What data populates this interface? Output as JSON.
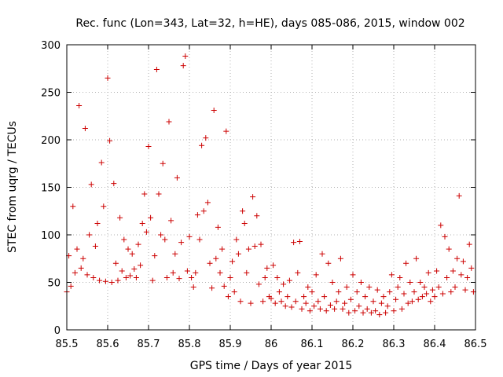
{
  "chart_data": {
    "type": "scatter",
    "title": "Rec. func (Lon=343, Lat=32, h=HE), days 085-086, 2015, window 002",
    "xlabel": "GPS time / Days of year 2015",
    "ylabel": "STEC from uqrg / TECUs",
    "xlim": [
      85.5,
      86.5
    ],
    "ylim": [
      0,
      300
    ],
    "xticks": [
      "85.5",
      "85.6",
      "85.7",
      "85.8",
      "85.9",
      "86",
      "86.1",
      "86.2",
      "86.3",
      "86.4",
      "86.5"
    ],
    "yticks": [
      "0",
      "50",
      "100",
      "150",
      "200",
      "250",
      "300"
    ],
    "grid": true,
    "marker": "plus",
    "colors": {
      "points": "#cc0000",
      "axes": "#000000",
      "grid": "#b0b0b0"
    },
    "series": [
      {
        "points": [
          [
            85.5,
            40
          ],
          [
            85.505,
            78
          ],
          [
            85.51,
            46
          ],
          [
            85.515,
            130
          ],
          [
            85.52,
            60
          ],
          [
            85.525,
            85
          ],
          [
            85.53,
            236
          ],
          [
            85.535,
            65
          ],
          [
            85.54,
            75
          ],
          [
            85.545,
            212
          ],
          [
            85.55,
            58
          ],
          [
            85.555,
            100
          ],
          [
            85.56,
            153
          ],
          [
            85.565,
            55
          ],
          [
            85.57,
            88
          ],
          [
            85.575,
            112
          ],
          [
            85.58,
            52
          ],
          [
            85.585,
            176
          ],
          [
            85.59,
            130
          ],
          [
            85.595,
            51
          ],
          [
            85.6,
            265
          ],
          [
            85.605,
            199
          ],
          [
            85.61,
            50
          ],
          [
            85.615,
            154
          ],
          [
            85.62,
            70
          ],
          [
            85.625,
            52
          ],
          [
            85.63,
            118
          ],
          [
            85.635,
            62
          ],
          [
            85.64,
            95
          ],
          [
            85.645,
            55
          ],
          [
            85.65,
            85
          ],
          [
            85.655,
            57
          ],
          [
            85.66,
            80
          ],
          [
            85.665,
            64
          ],
          [
            85.67,
            55
          ],
          [
            85.675,
            90
          ],
          [
            85.68,
            68
          ],
          [
            85.685,
            112
          ],
          [
            85.69,
            143
          ],
          [
            85.695,
            103
          ],
          [
            85.7,
            193
          ],
          [
            85.705,
            118
          ],
          [
            85.71,
            52
          ],
          [
            85.715,
            78
          ],
          [
            85.72,
            274
          ],
          [
            85.725,
            143
          ],
          [
            85.73,
            100
          ],
          [
            85.735,
            175
          ],
          [
            85.74,
            95
          ],
          [
            85.745,
            55
          ],
          [
            85.75,
            219
          ],
          [
            85.755,
            115
          ],
          [
            85.76,
            60
          ],
          [
            85.765,
            80
          ],
          [
            85.77,
            160
          ],
          [
            85.775,
            54
          ],
          [
            85.78,
            92
          ],
          [
            85.785,
            278
          ],
          [
            85.79,
            288
          ],
          [
            85.795,
            62
          ],
          [
            85.8,
            98
          ],
          [
            85.805,
            55
          ],
          [
            85.81,
            45
          ],
          [
            85.815,
            60
          ],
          [
            85.82,
            121
          ],
          [
            85.825,
            95
          ],
          [
            85.83,
            194
          ],
          [
            85.835,
            125
          ],
          [
            85.84,
            202
          ],
          [
            85.845,
            134
          ],
          [
            85.85,
            70
          ],
          [
            85.855,
            44
          ],
          [
            85.86,
            231
          ],
          [
            85.865,
            75
          ],
          [
            85.87,
            108
          ],
          [
            85.875,
            60
          ],
          [
            85.88,
            85
          ],
          [
            85.885,
            46
          ],
          [
            85.89,
            209
          ],
          [
            85.895,
            35
          ],
          [
            85.9,
            55
          ],
          [
            85.905,
            72
          ],
          [
            85.91,
            40
          ],
          [
            85.915,
            95
          ],
          [
            85.92,
            80
          ],
          [
            85.925,
            30
          ],
          [
            85.93,
            125
          ],
          [
            85.935,
            112
          ],
          [
            85.94,
            60
          ],
          [
            85.945,
            85
          ],
          [
            85.95,
            28
          ],
          [
            85.955,
            140
          ],
          [
            85.96,
            88
          ],
          [
            85.965,
            120
          ],
          [
            85.97,
            48
          ],
          [
            85.975,
            90
          ],
          [
            85.98,
            30
          ],
          [
            85.985,
            55
          ],
          [
            85.99,
            65
          ],
          [
            85.995,
            35
          ],
          [
            86.0,
            33
          ],
          [
            86.005,
            68
          ],
          [
            86.01,
            28
          ],
          [
            86.015,
            55
          ],
          [
            86.02,
            40
          ],
          [
            86.025,
            30
          ],
          [
            86.03,
            48
          ],
          [
            86.035,
            25
          ],
          [
            86.04,
            35
          ],
          [
            86.045,
            52
          ],
          [
            86.05,
            24
          ],
          [
            86.055,
            92
          ],
          [
            86.06,
            30
          ],
          [
            86.065,
            60
          ],
          [
            86.07,
            93
          ],
          [
            86.075,
            22
          ],
          [
            86.08,
            35
          ],
          [
            86.085,
            28
          ],
          [
            86.09,
            45
          ],
          [
            86.095,
            20
          ],
          [
            86.1,
            40
          ],
          [
            86.105,
            25
          ],
          [
            86.11,
            58
          ],
          [
            86.115,
            30
          ],
          [
            86.12,
            22
          ],
          [
            86.125,
            80
          ],
          [
            86.13,
            35
          ],
          [
            86.135,
            20
          ],
          [
            86.14,
            70
          ],
          [
            86.145,
            26
          ],
          [
            86.15,
            50
          ],
          [
            86.155,
            22
          ],
          [
            86.16,
            30
          ],
          [
            86.165,
            40
          ],
          [
            86.17,
            75
          ],
          [
            86.175,
            22
          ],
          [
            86.18,
            28
          ],
          [
            86.185,
            45
          ],
          [
            86.19,
            18
          ],
          [
            86.195,
            32
          ],
          [
            86.2,
            58
          ],
          [
            86.205,
            20
          ],
          [
            86.21,
            40
          ],
          [
            86.215,
            25
          ],
          [
            86.22,
            50
          ],
          [
            86.225,
            18
          ],
          [
            86.23,
            35
          ],
          [
            86.235,
            22
          ],
          [
            86.24,
            45
          ],
          [
            86.245,
            18
          ],
          [
            86.25,
            30
          ],
          [
            86.255,
            20
          ],
          [
            86.26,
            42
          ],
          [
            86.265,
            16
          ],
          [
            86.27,
            28
          ],
          [
            86.275,
            35
          ],
          [
            86.28,
            18
          ],
          [
            86.285,
            25
          ],
          [
            86.29,
            40
          ],
          [
            86.295,
            58
          ],
          [
            86.3,
            20
          ],
          [
            86.305,
            32
          ],
          [
            86.31,
            45
          ],
          [
            86.315,
            55
          ],
          [
            86.32,
            22
          ],
          [
            86.325,
            38
          ],
          [
            86.33,
            70
          ],
          [
            86.335,
            28
          ],
          [
            86.34,
            50
          ],
          [
            86.345,
            30
          ],
          [
            86.35,
            40
          ],
          [
            86.355,
            75
          ],
          [
            86.36,
            32
          ],
          [
            86.365,
            50
          ],
          [
            86.37,
            35
          ],
          [
            86.375,
            45
          ],
          [
            86.38,
            38
          ],
          [
            86.385,
            60
          ],
          [
            86.39,
            30
          ],
          [
            86.395,
            42
          ],
          [
            86.4,
            35
          ],
          [
            86.405,
            62
          ],
          [
            86.41,
            45
          ],
          [
            86.415,
            110
          ],
          [
            86.42,
            38
          ],
          [
            86.425,
            98
          ],
          [
            86.43,
            55
          ],
          [
            86.435,
            85
          ],
          [
            86.44,
            40
          ],
          [
            86.445,
            62
          ],
          [
            86.45,
            45
          ],
          [
            86.455,
            75
          ],
          [
            86.46,
            141
          ],
          [
            86.465,
            58
          ],
          [
            86.47,
            72
          ],
          [
            86.475,
            42
          ],
          [
            86.48,
            55
          ],
          [
            86.485,
            90
          ],
          [
            86.49,
            65
          ],
          [
            86.495,
            40
          ]
        ]
      }
    ]
  }
}
